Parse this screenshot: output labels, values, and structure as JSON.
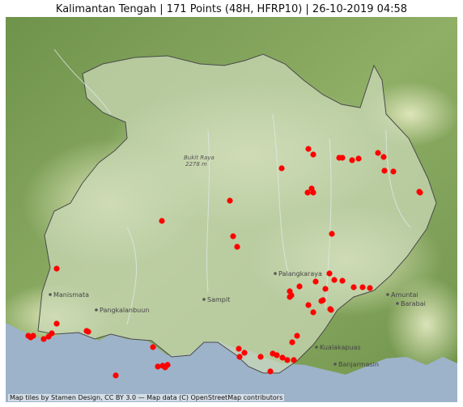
{
  "title": "Kalimantan Tengah | 171 Points (48H, HFRP10) | 26-10-2019 04:58",
  "attribution": "Map tiles by Stamen Design, CC BY 3.0 — Map data (C) OpenStreetMap contributors",
  "colors": {
    "land": "#7e9e5c",
    "land_light": "#c4d3a2",
    "sea": "#9db3c9",
    "province_fill": "#c9d8b6",
    "province_border": "#4a4a4a",
    "hotspot": "#ff0000"
  },
  "labels": {
    "peak": "Bukit Raya",
    "peak_elev": "2278 m",
    "cities": [
      {
        "id": "palangkaraya",
        "name": "Palangkaraya"
      },
      {
        "id": "sampit",
        "name": "Sampit"
      },
      {
        "id": "pangkalanbuun",
        "name": "Pangkalanbuun"
      },
      {
        "id": "manismata",
        "name": "Manismata"
      },
      {
        "id": "amuntai",
        "name": "Amuntai"
      },
      {
        "id": "barabai",
        "name": "Barabai"
      },
      {
        "id": "kualakapuas",
        "name": "Kualakapuas"
      },
      {
        "id": "banjarmasin",
        "name": "Banjarmasin"
      }
    ]
  }
}
